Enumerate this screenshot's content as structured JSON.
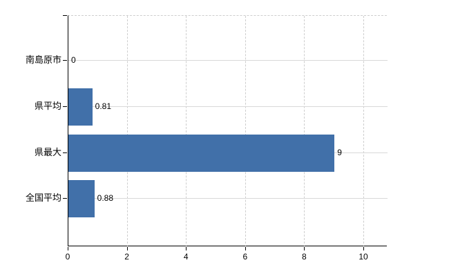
{
  "chart_data": {
    "type": "bar",
    "orientation": "horizontal",
    "title": "",
    "xlabel": "",
    "ylabel": "",
    "categories": [
      "南島原市",
      "県平均",
      "県最大",
      "全国平均"
    ],
    "values": [
      0,
      0.81,
      9,
      0.88
    ],
    "value_labels": [
      "0",
      "0.81",
      "9",
      "0.88"
    ],
    "x_ticks": [
      0,
      2,
      4,
      6,
      8,
      10
    ],
    "x_tick_labels": [
      "0",
      "2",
      "4",
      "6",
      "8",
      "10"
    ],
    "xlim": [
      0,
      10.8
    ],
    "legend": "none",
    "grid": {
      "horizontal": "solid",
      "vertical": "dashed",
      "top_border": "dashed"
    },
    "colors": {
      "bar": "#4170a9",
      "h_grid": "#d8d8d8",
      "v_grid": "#cdcdcd",
      "axis": "#000000",
      "text": "#000000",
      "background": "#ffffff"
    }
  }
}
